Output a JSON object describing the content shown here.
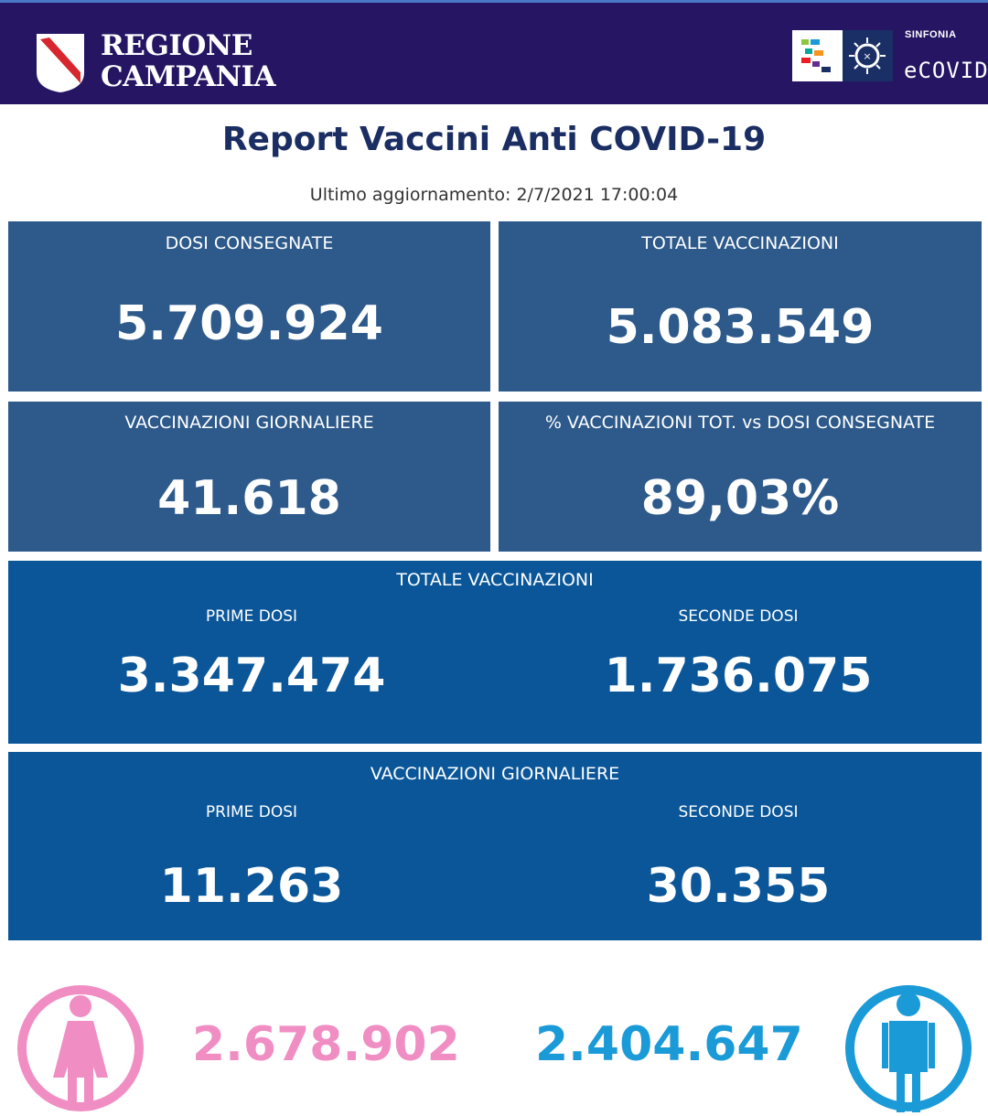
{
  "header": {
    "region_line1": "REGIONE",
    "region_line2": "CAMPANIA",
    "sinfonia_label": "SINFONIA",
    "ecovid_label": "eCOVID"
  },
  "title": "Report Vaccini Anti COVID-19",
  "updated": "Ultimo aggiornamento: 2/7/2021  17:00:04",
  "stats": {
    "dosi_consegnate": {
      "label": "DOSI  CONSEGNATE",
      "value": "5.709.924"
    },
    "totale_vaccinazioni": {
      "label": "TOTALE VACCINAZIONI",
      "value": "5.083.549"
    },
    "vaccinazioni_giornaliere": {
      "label": "VACCINAZIONI GIORNALIERE",
      "value": "41.618"
    },
    "percentuale": {
      "label": "% VACCINAZIONI TOT. vs DOSI CONSEGNATE",
      "value": "89,03%"
    }
  },
  "totale_section": {
    "title": "TOTALE VACCINAZIONI",
    "prime_label": "PRIME DOSI",
    "prime_value": "3.347.474",
    "seconde_label": "SECONDE DOSI",
    "seconde_value": "1.736.075"
  },
  "giornaliere_section": {
    "title": "VACCINAZIONI GIORNALIERE",
    "prime_label": "PRIME DOSI",
    "prime_value": "11.263",
    "seconde_label": "SECONDE DOSI",
    "seconde_value": "30.355"
  },
  "gender": {
    "female_value": "2.678.902",
    "male_value": "2.404.647",
    "female_color": "#f08ec4",
    "male_color": "#1b9ad8"
  },
  "icons": {
    "region_logo": "region-shield-icon",
    "sinfonia_logo": "sinfonia-logo-icon",
    "female": "female-person-icon",
    "male": "male-person-icon"
  }
}
